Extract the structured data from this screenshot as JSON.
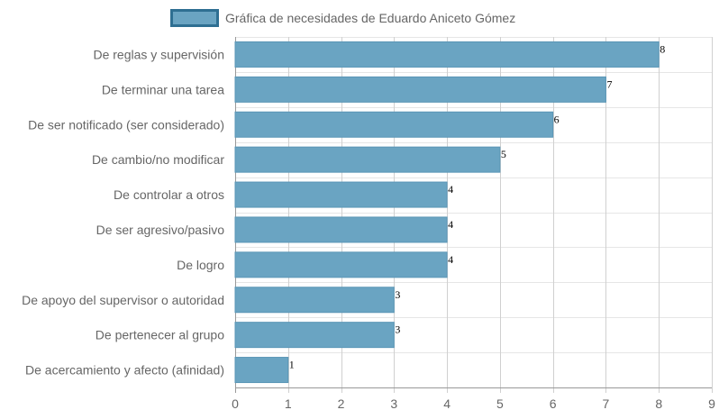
{
  "chart_data": {
    "type": "bar",
    "orientation": "horizontal",
    "title": "",
    "xlabel": "",
    "ylabel": "",
    "legend": {
      "position": "top",
      "label": "Gráfica de necesidades de Eduardo Aniceto Gómez"
    },
    "categories": [
      "De reglas y supervisión",
      "De terminar una tarea",
      "De ser notificado (ser considerado)",
      "De cambio/no modificar",
      "De controlar a otros",
      "De ser agresivo/pasivo",
      "De logro",
      "De apoyo del supervisor o autoridad",
      "De pertenecer al grupo",
      "De acercamiento y afecto (afinidad)"
    ],
    "series": [
      {
        "name": "Gráfica de necesidades de Eduardo Aniceto Gómez",
        "values": [
          8,
          7,
          6,
          5,
          4,
          4,
          4,
          3,
          3,
          1
        ]
      }
    ],
    "xlim": [
      0,
      9
    ],
    "xticks": [
      "0",
      "1",
      "2",
      "3",
      "4",
      "5",
      "6",
      "7",
      "8",
      "9"
    ],
    "grid": true,
    "colors": {
      "bar_fill": "#6aa4c2",
      "bar_stroke": "#5a96b6",
      "legend_stroke": "#2e6f92",
      "grid": "#d9d9d9",
      "axis": "#999999"
    }
  }
}
